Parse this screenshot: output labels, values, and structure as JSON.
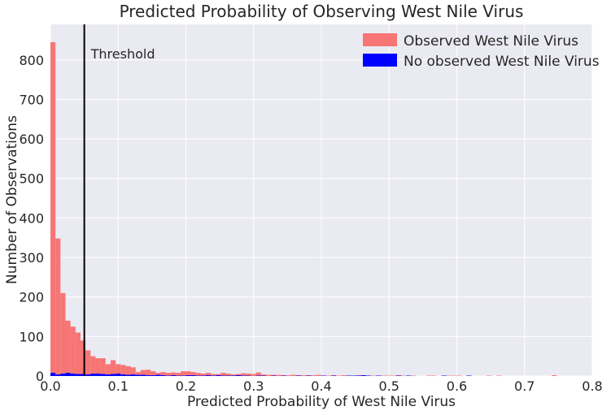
{
  "chart_data": {
    "type": "bar",
    "title": "Predicted Probability of Observing West Nile Virus",
    "xlabel": "Predicted Probability of West Nile Virus",
    "ylabel": "Number of Observations",
    "xlim": [
      0,
      0.8
    ],
    "ylim": [
      0,
      890
    ],
    "xticks": [
      "0.0",
      "0.1",
      "0.2",
      "0.3",
      "0.4",
      "0.5",
      "0.6",
      "0.7",
      "0.8"
    ],
    "yticks": [
      "0",
      "100",
      "200",
      "300",
      "400",
      "500",
      "600",
      "700",
      "800"
    ],
    "grid": true,
    "legend_position": "top-right",
    "bin_width": 0.0074,
    "series": [
      {
        "name": "Observed West Nile Virus",
        "color": "#f77575",
        "x": [
          0.0,
          0.0074,
          0.0148,
          0.0222,
          0.0296,
          0.037,
          0.0444,
          0.0518,
          0.0592,
          0.0666,
          0.074,
          0.0814,
          0.0888,
          0.0962,
          0.1036,
          0.111,
          0.1184,
          0.1258,
          0.1332,
          0.1406,
          0.148,
          0.1554,
          0.1628,
          0.1702,
          0.1776,
          0.185,
          0.1924,
          0.1998,
          0.2072,
          0.2146,
          0.222,
          0.2294,
          0.2368,
          0.2442,
          0.2516,
          0.259,
          0.2664,
          0.2738,
          0.2812,
          0.2886,
          0.296,
          0.3034,
          0.3108,
          0.3182,
          0.3256,
          0.333,
          0.3404,
          0.3478,
          0.3552,
          0.3626,
          0.37,
          0.3774,
          0.3848,
          0.3922,
          0.3996,
          0.407,
          0.4144,
          0.4218,
          0.4292,
          0.4366,
          0.444,
          0.4514,
          0.4588,
          0.4662,
          0.4736,
          0.481,
          0.4884,
          0.4958,
          0.5032,
          0.5106,
          0.518,
          0.5254,
          0.5328,
          0.5402,
          0.5476,
          0.555,
          0.5624,
          0.5698,
          0.5772,
          0.5846,
          0.592,
          0.5994,
          0.6068,
          0.6142,
          0.6216,
          0.629,
          0.6364,
          0.6438,
          0.6512,
          0.6586,
          0.666,
          0.6734,
          0.6808,
          0.6882,
          0.6956,
          0.703,
          0.7104,
          0.7178,
          0.7252,
          0.7326,
          0.74
        ],
        "values": [
          845,
          348,
          210,
          140,
          125,
          110,
          90,
          65,
          50,
          45,
          45,
          30,
          40,
          30,
          28,
          25,
          22,
          10,
          15,
          16,
          12,
          8,
          10,
          8,
          9,
          8,
          12,
          12,
          10,
          8,
          6,
          8,
          5,
          5,
          8,
          6,
          4,
          5,
          7,
          6,
          5,
          9,
          4,
          3,
          3,
          3,
          2,
          2,
          3,
          2,
          2,
          2,
          2,
          3,
          1,
          1,
          2,
          1,
          2,
          1,
          1,
          2,
          1,
          1,
          1,
          1,
          1,
          1,
          1,
          2,
          1,
          0,
          1,
          0,
          0,
          1,
          1,
          0,
          0,
          1,
          1,
          1,
          0,
          1,
          0,
          0,
          0,
          1,
          0,
          1,
          0,
          0,
          0,
          0,
          0,
          0,
          0,
          0,
          0,
          0,
          2
        ]
      },
      {
        "name": "No observed West Nile Virus",
        "color": "#0000ff",
        "x": [
          0.0,
          0.0074,
          0.0148,
          0.0222,
          0.0296,
          0.037,
          0.0444,
          0.0518,
          0.0592,
          0.0666,
          0.074,
          0.0814,
          0.0888,
          0.0962,
          0.1036,
          0.111,
          0.1184,
          0.1258,
          0.1332,
          0.1406,
          0.148,
          0.1554,
          0.1628,
          0.1702,
          0.1776,
          0.185,
          0.1924,
          0.1998,
          0.2072,
          0.2146,
          0.222,
          0.2294,
          0.2368,
          0.2442,
          0.2516,
          0.259,
          0.2664,
          0.2738,
          0.2812,
          0.2886,
          0.296,
          0.3034,
          0.3108,
          0.3182,
          0.3256,
          0.333,
          0.3404,
          0.3478,
          0.3552,
          0.3626,
          0.37,
          0.3774,
          0.3848,
          0.3922,
          0.3996,
          0.407,
          0.4144,
          0.4218,
          0.4292,
          0.4366,
          0.444,
          0.4514,
          0.4588,
          0.4662,
          0.4736,
          0.481,
          0.4884,
          0.4958,
          0.5032,
          0.5106,
          0.518,
          0.5254,
          0.5328,
          0.5402,
          0.5476,
          0.555,
          0.5624,
          0.5698,
          0.5772,
          0.5846,
          0.592,
          0.5994,
          0.6068,
          0.6142,
          0.6216,
          0.629,
          0.6364,
          0.6438,
          0.6512,
          0.6586,
          0.666,
          0.6734,
          0.6808,
          0.6882,
          0.6956,
          0.703,
          0.7104,
          0.7178,
          0.7252,
          0.7326,
          0.74
        ],
        "values": [
          8,
          4,
          6,
          8,
          6,
          5,
          5,
          4,
          6,
          6,
          5,
          4,
          5,
          6,
          4,
          3,
          4,
          3,
          3,
          2,
          2,
          3,
          2,
          1,
          2,
          1,
          1,
          2,
          2,
          1,
          1,
          2,
          1,
          2,
          1,
          1,
          1,
          2,
          1,
          1,
          0,
          1,
          1,
          0,
          1,
          0,
          1,
          0,
          0,
          1,
          0,
          1,
          0,
          0,
          1,
          0,
          1,
          0,
          0,
          1,
          1,
          1,
          2,
          1,
          0,
          1,
          0,
          0,
          0,
          1,
          0,
          1,
          0,
          0,
          0,
          0,
          0,
          0,
          1,
          0,
          0,
          0,
          0,
          1,
          0,
          0,
          0,
          0,
          0,
          0,
          0,
          0,
          0,
          0,
          0,
          0,
          0,
          0,
          0,
          0,
          0
        ]
      }
    ],
    "annotations": [
      {
        "type": "vline",
        "x": 0.05,
        "label": "Threshold",
        "color": "#000000"
      }
    ]
  }
}
